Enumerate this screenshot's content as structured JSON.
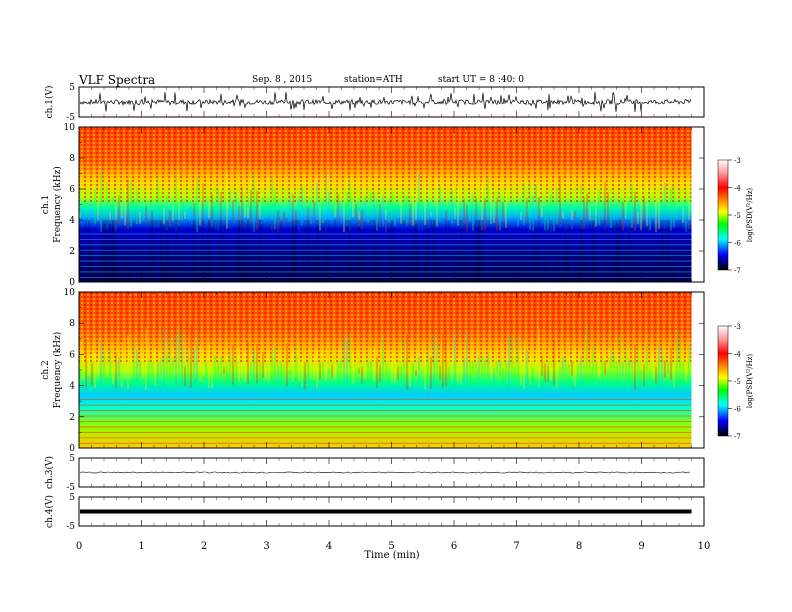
{
  "header": {
    "title": "VLF Spectra",
    "date": "Sep. 8 , 2015",
    "station": "station=ATH",
    "start": "start UT = 8 :40: 0"
  },
  "chart_data": [
    {
      "type": "line",
      "panel": "ch1-waveform",
      "ylabel": "ch.1(V)",
      "ylim": [
        -5,
        5
      ],
      "yticks": [
        "5",
        "-5"
      ],
      "x_range_min": [
        0,
        9.8
      ],
      "approx_level": 0,
      "description_values": {
        "typical_amplitude": 0.8,
        "max_spike": 3.5
      }
    },
    {
      "type": "heatmap",
      "panel": "ch1-spectrogram",
      "ylabel": "ch.1\nFrequency (kHz)",
      "ylabel_lines": [
        "ch.1",
        "Frequency (kHz)"
      ],
      "ylim": [
        0,
        10
      ],
      "yticks": [
        "0",
        "2",
        "4",
        "6",
        "8",
        "10"
      ],
      "colorbar": {
        "label": "log(PSD(V²/Hz)",
        "range": [
          -7,
          -3
        ],
        "ticks": [
          "-3",
          "-4",
          "-5",
          "-6",
          "-7"
        ]
      },
      "noise_boundary_khz": 4.5,
      "low_band_khz": [
        0,
        4
      ]
    },
    {
      "type": "heatmap",
      "panel": "ch2-spectrogram",
      "ylabel_lines": [
        "ch.2",
        "Frequency (kHz)"
      ],
      "ylim": [
        0,
        10
      ],
      "yticks": [
        "0",
        "2",
        "4",
        "6",
        "8",
        "10"
      ],
      "colorbar": {
        "label": "log(PSD(V²/Hz)",
        "range": [
          -7,
          -3
        ],
        "ticks": [
          "-3",
          "-4",
          "-5",
          "-6",
          "-7"
        ]
      },
      "noise_boundary_khz": 5.0,
      "band_change_min": 8.55
    },
    {
      "type": "line",
      "panel": "ch3-waveform",
      "ylabel": "ch.3(V)",
      "ylim": [
        -5,
        5
      ],
      "yticks": [
        "5",
        "-5"
      ],
      "approx_level": 0
    },
    {
      "type": "line",
      "panel": "ch4-waveform",
      "ylabel": "ch.4(V)",
      "ylim": [
        -5,
        5
      ],
      "yticks": [
        "5",
        "-5"
      ],
      "approx_level": 0
    }
  ],
  "x_axis": {
    "label": "Time (min)",
    "ticks": [
      "0",
      "1",
      "2",
      "3",
      "4",
      "5",
      "6",
      "7",
      "8",
      "9",
      "10"
    ],
    "range": [
      0,
      10
    ],
    "data_end": 9.8
  },
  "colors": {
    "red": "#ff0000",
    "orange": "#ff8c00",
    "yellow": "#ffff00",
    "green": "#00ff00",
    "cyan": "#00ffff",
    "blue": "#0000ff",
    "navy": "#000066",
    "black": "#000000"
  }
}
